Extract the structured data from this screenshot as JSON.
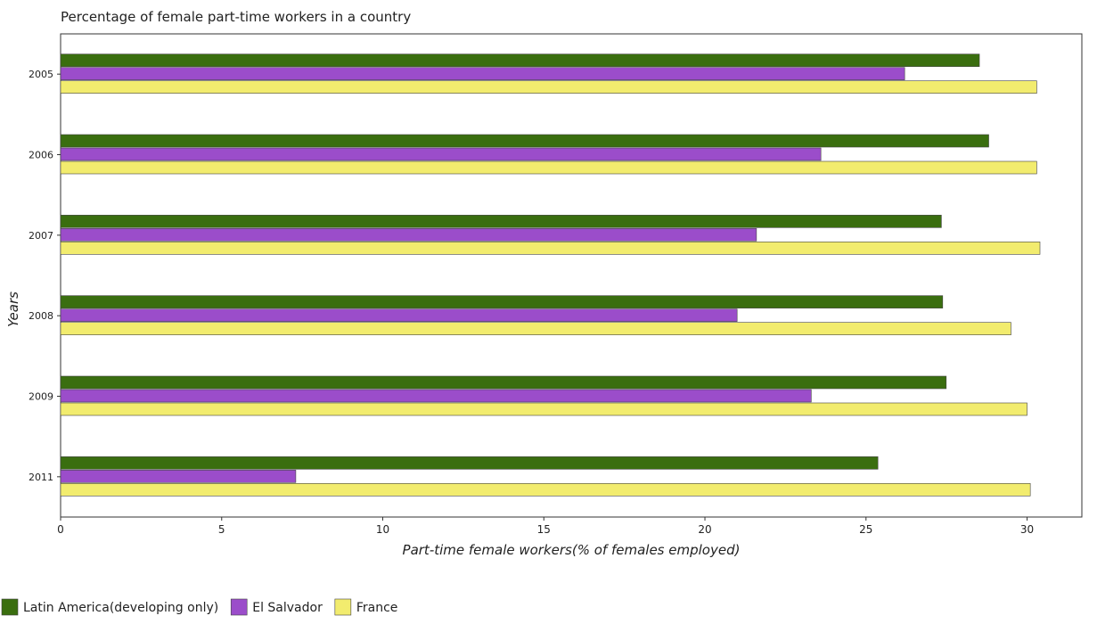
{
  "chart_data": {
    "type": "bar",
    "orientation": "horizontal",
    "title": "Percentage of female part-time workers in a country",
    "xlabel": "Part-time female workers(% of females employed)",
    "ylabel": "Years",
    "categories": [
      "2005",
      "2006",
      "2007",
      "2008",
      "2009",
      "2011"
    ],
    "series": [
      {
        "name": "Latin America(developing only)",
        "color": "#3a6e0f",
        "values": [
          28.52,
          28.81,
          27.34,
          27.38,
          27.49,
          25.37
        ]
      },
      {
        "name": "El Salvador",
        "color": "#9b4dca",
        "values": [
          26.2,
          23.6,
          21.6,
          21.0,
          23.3,
          7.3
        ]
      },
      {
        "name": "France",
        "color": "#f2ec6e",
        "values": [
          30.3,
          30.3,
          30.4,
          29.5,
          30.0,
          30.1
        ]
      }
    ],
    "xlim": [
      0,
      31.7
    ],
    "xticks": [
      0,
      5,
      10,
      15,
      20,
      25,
      30
    ],
    "grid": false,
    "legend_position": "bottom-left"
  }
}
